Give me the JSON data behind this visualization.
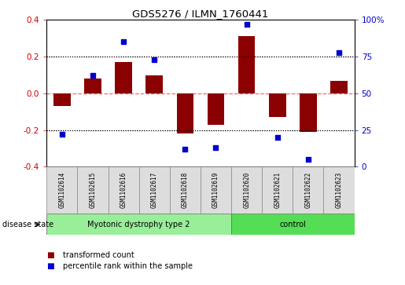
{
  "title": "GDS5276 / ILMN_1760441",
  "samples": [
    "GSM1102614",
    "GSM1102615",
    "GSM1102616",
    "GSM1102617",
    "GSM1102618",
    "GSM1102619",
    "GSM1102620",
    "GSM1102621",
    "GSM1102622",
    "GSM1102623"
  ],
  "bar_values": [
    -0.07,
    0.08,
    0.17,
    0.1,
    -0.22,
    -0.17,
    0.31,
    -0.13,
    -0.21,
    0.07
  ],
  "dot_values_pct": [
    22,
    62,
    85,
    73,
    12,
    13,
    97,
    20,
    5,
    78
  ],
  "ylim": [
    -0.4,
    0.4
  ],
  "y2lim": [
    0,
    100
  ],
  "bar_color": "#8B0000",
  "dot_color": "#0000CC",
  "hline_color": "#FF6666",
  "dotgrid_color": "#000000",
  "groups": [
    {
      "label": "Myotonic dystrophy type 2",
      "start": 0,
      "end": 6,
      "color": "#99EE99"
    },
    {
      "label": "control",
      "start": 6,
      "end": 10,
      "color": "#55DD55"
    }
  ],
  "disease_state_label": "disease state",
  "legend_bar_label": "transformed count",
  "legend_dot_label": "percentile rank within the sample",
  "ylabel_left_color": "#CC0000",
  "ylabel_right_color": "#0000CC",
  "yticks_left": [
    -0.4,
    -0.2,
    0.0,
    0.2,
    0.4
  ],
  "yticks_right": [
    0,
    25,
    50,
    75,
    100
  ],
  "background_color": "#FFFFFF"
}
